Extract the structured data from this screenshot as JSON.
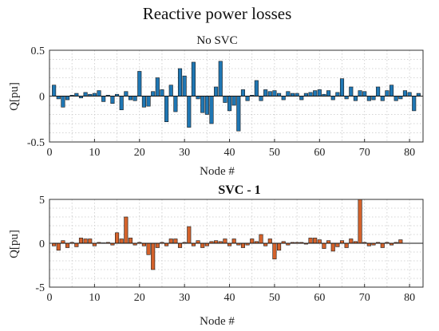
{
  "figure": {
    "title": "Reactive power losses"
  },
  "chart_data": [
    {
      "type": "bar",
      "title": "No SVC",
      "title_bold": false,
      "xlabel": "Node #",
      "ylabel": "Q[pu]",
      "xlim": [
        0,
        83
      ],
      "ylim": [
        -0.5,
        0.5
      ],
      "xticks": [
        0,
        10,
        20,
        30,
        40,
        50,
        60,
        70,
        80
      ],
      "yticks": [
        -0.5,
        0,
        0.5
      ],
      "ytick_labels": [
        "-0.5",
        "0",
        "0.5"
      ],
      "grid": true,
      "color": "#1f77b4",
      "x": [
        1,
        2,
        3,
        4,
        5,
        6,
        7,
        8,
        9,
        10,
        11,
        12,
        13,
        14,
        15,
        16,
        17,
        18,
        19,
        20,
        21,
        22,
        23,
        24,
        25,
        26,
        27,
        28,
        29,
        30,
        31,
        32,
        33,
        34,
        35,
        36,
        37,
        38,
        39,
        40,
        41,
        42,
        43,
        44,
        45,
        46,
        47,
        48,
        49,
        50,
        51,
        52,
        53,
        54,
        55,
        56,
        57,
        58,
        59,
        60,
        61,
        62,
        63,
        64,
        65,
        66,
        67,
        68,
        69,
        70,
        71,
        72,
        73,
        74,
        75,
        76,
        77,
        78,
        79,
        80,
        81,
        82
      ],
      "values": [
        0.12,
        -0.03,
        -0.12,
        -0.04,
        0.01,
        0.03,
        -0.02,
        0.04,
        0.02,
        0.03,
        0.06,
        -0.06,
        0.01,
        -0.08,
        0.02,
        -0.15,
        0.05,
        -0.04,
        -0.05,
        0.27,
        -0.12,
        -0.11,
        0.05,
        0.2,
        0.07,
        -0.28,
        0.12,
        -0.17,
        0.3,
        0.22,
        -0.34,
        0.37,
        -0.03,
        -0.18,
        -0.2,
        -0.3,
        0.1,
        0.38,
        -0.07,
        -0.16,
        -0.1,
        -0.38,
        0.07,
        -0.05,
        0.01,
        0.17,
        -0.05,
        0.07,
        0.05,
        0.06,
        0.03,
        -0.04,
        0.05,
        0.03,
        0.03,
        -0.04,
        0.03,
        0.04,
        0.06,
        0.07,
        0.02,
        0.06,
        -0.04,
        0.04,
        0.19,
        -0.03,
        0.1,
        -0.05,
        0.06,
        0.05,
        -0.05,
        -0.04,
        0.1,
        -0.05,
        0.06,
        0.12,
        -0.05,
        -0.03,
        0.06,
        0.04,
        -0.16,
        0.03
      ]
    },
    {
      "type": "bar",
      "title": "SVC - 1",
      "title_bold": true,
      "xlabel": "Node #",
      "ylabel": "Q[pu]",
      "xlim": [
        0,
        83
      ],
      "ylim": [
        -5,
        5
      ],
      "xticks": [
        0,
        10,
        20,
        30,
        40,
        50,
        60,
        70,
        80
      ],
      "yticks": [
        -5,
        0,
        5
      ],
      "ytick_labels": [
        "-5",
        "0",
        "5"
      ],
      "grid": true,
      "color": "#d4622b",
      "x": [
        1,
        2,
        3,
        4,
        5,
        6,
        7,
        8,
        9,
        10,
        11,
        12,
        13,
        14,
        15,
        16,
        17,
        18,
        19,
        20,
        21,
        22,
        23,
        24,
        25,
        26,
        27,
        28,
        29,
        30,
        31,
        32,
        33,
        34,
        35,
        36,
        37,
        38,
        39,
        40,
        41,
        42,
        43,
        44,
        45,
        46,
        47,
        48,
        49,
        50,
        51,
        52,
        53,
        54,
        55,
        56,
        57,
        58,
        59,
        60,
        61,
        62,
        63,
        64,
        65,
        66,
        67,
        68,
        69,
        70,
        71,
        72,
        73,
        74,
        75,
        76,
        77,
        78,
        79,
        80,
        81,
        82
      ],
      "values": [
        -0.3,
        -0.8,
        0.3,
        -0.5,
        0.1,
        -0.4,
        0.6,
        0.5,
        0.5,
        -0.3,
        0.1,
        0.05,
        0.1,
        -0.2,
        1.2,
        0.5,
        3.0,
        0.6,
        -0.2,
        0.1,
        -0.3,
        -1.3,
        -3.0,
        -0.5,
        0.1,
        -0.3,
        0.5,
        0.5,
        -0.5,
        0.1,
        1.9,
        -0.3,
        0.3,
        -0.5,
        -0.3,
        0.2,
        0.3,
        0.2,
        0.5,
        -0.3,
        0.5,
        -0.2,
        -0.5,
        -0.2,
        0.5,
        0.2,
        1.0,
        -0.3,
        0.5,
        -1.8,
        -0.8,
        0.2,
        -0.2,
        0.1,
        0.1,
        0.1,
        -0.1,
        0.6,
        0.6,
        0.4,
        -0.6,
        0.3,
        -0.9,
        -0.4,
        0.3,
        -0.5,
        0.5,
        0.2,
        5.0,
        0.1,
        -0.3,
        -0.2,
        0.1,
        -0.5,
        0.1,
        -0.2,
        0.1,
        0.4,
        0.0,
        0.0,
        0.0,
        0.0
      ]
    }
  ]
}
